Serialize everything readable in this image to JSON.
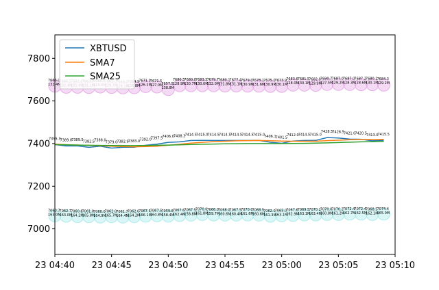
{
  "chart_data": {
    "type": "line",
    "x": [
      "04:40",
      "04:41",
      "04:42",
      "04:43",
      "04:44",
      "04:45",
      "04:46",
      "04:47",
      "04:48",
      "04:49",
      "04:50",
      "04:51",
      "04:52",
      "04:53",
      "04:54",
      "04:55",
      "04:56",
      "04:57",
      "04:58",
      "04:59",
      "05:00",
      "05:01",
      "05:02",
      "05:03",
      "05:04",
      "05:05",
      "05:06",
      "05:07",
      "05:08",
      "05:09"
    ],
    "x_ticks": [
      "23 04:40",
      "23 04:45",
      "23 04:50",
      "23 04:55",
      "23 05:00",
      "23 05:05",
      "23 05:10"
    ],
    "x_tick_values": [
      "04:40",
      "04:45",
      "04:50",
      "04:55",
      "05:00",
      "05:05",
      "05:10"
    ],
    "ylim": [
      6880,
      7910
    ],
    "y_ticks": [
      7000,
      7200,
      7400,
      7600,
      7800
    ],
    "legend_position": "upper-left",
    "series": [
      {
        "name": "XBTUSD",
        "color": "#1f77b4",
        "values": [
          7395.3,
          7389.0,
          7389.5,
          7382.5,
          7388.0,
          7379.0,
          7382.9,
          7383.0,
          7392.0,
          7397.5,
          7406.0,
          7408.3,
          7414.5,
          7415.0,
          7414.5,
          7414.5,
          7414.5,
          7414.5,
          7415.0,
          7406.1,
          7401.5,
          7412.0,
          7414.5,
          7415.0,
          7428.5,
          7426.5,
          7421.0,
          7420.5,
          7413.0,
          7415.5
        ]
      },
      {
        "name": "SMA7",
        "color": "#ff7f0e",
        "values": [
          7397.5,
          7395.0,
          7393.0,
          7391.5,
          7390.0,
          7388.0,
          7386.0,
          7385.0,
          7386.0,
          7388.0,
          7392.0,
          7397.0,
          7402.0,
          7406.0,
          7409.0,
          7411.0,
          7413.0,
          7414.0,
          7414.5,
          7413.5,
          7412.0,
          7411.0,
          7411.0,
          7411.0,
          7414.0,
          7416.0,
          7418.0,
          7419.0,
          7419.0,
          7419.5
        ]
      },
      {
        "name": "SMA25",
        "color": "#2ca02c",
        "values": [
          7395.0,
          7394.0,
          7393.0,
          7392.0,
          7391.5,
          7391.0,
          7390.5,
          7390.5,
          7391.0,
          7392.0,
          7393.0,
          7394.5,
          7396.0,
          7397.0,
          7398.0,
          7399.0,
          7399.5,
          7400.0,
          7400.0,
          7400.0,
          7400.0,
          7400.5,
          7401.0,
          7402.0,
          7403.5,
          7405.0,
          7406.5,
          7408.0,
          7409.0,
          7410.5
        ]
      }
    ],
    "high_markers": {
      "color": "#e6aee6",
      "values": [
        7670.0,
        7665.0,
        7665.0,
        7664.0,
        7666.0,
        7664.0,
        7662.0,
        7663.0,
        7668.0,
        7666.0,
        7654.0,
        7672.0,
        7672.0,
        7672.0,
        7672.0,
        7671.0,
        7671.0,
        7670.0,
        7670.0,
        7669.0,
        7669.0,
        7675.0,
        7675.0,
        7674.0,
        7678.0,
        7678.0,
        7678.0,
        7677.0,
        7677.0,
        7675.0
      ],
      "labels": [
        [
          "7666.0",
          "132.4M"
        ],
        [
          "7666.5",
          "132.4M"
        ],
        [
          "7662.0",
          "131.8M"
        ],
        [
          "7663.0",
          "131.1M"
        ],
        [
          "7660.0",
          "129.6M"
        ],
        [
          "7661.0",
          "129.7M"
        ],
        [
          "7663.0",
          "128.1M"
        ],
        [
          "7664.9",
          "126.8M"
        ],
        [
          "7671.0",
          "126.2M"
        ],
        [
          "7671.5",
          "127.0M"
        ],
        [
          "7657.5",
          "138.8M"
        ],
        [
          "7680.5",
          "128.9M"
        ],
        [
          "7680.0",
          "130.7M"
        ],
        [
          "7683.5",
          "130.0M"
        ],
        [
          "7679.7",
          "132.0M"
        ],
        [
          "7680.1",
          "131.8M"
        ],
        [
          "7677.4",
          "131.1M"
        ],
        [
          "7679.0",
          "130.9M"
        ],
        [
          "7678.1",
          "131.6M"
        ],
        [
          "7675.0",
          "130.9M"
        ],
        [
          "7673.9",
          "130.1M"
        ],
        [
          "7683.6",
          "128.0M"
        ],
        [
          "7681.5",
          "130.1M"
        ],
        [
          "7682.0",
          "129.9M"
        ],
        [
          "7690.7",
          "127.5M"
        ],
        [
          "7687.0",
          "129.2M"
        ],
        [
          "7687.0",
          "128.3M"
        ],
        [
          "7687.2",
          "128.6M"
        ],
        [
          "7680.1",
          "130.1M"
        ],
        [
          "7684.3",
          "129.2M"
        ]
      ]
    },
    "low_markers": {
      "color": "#aeeaea",
      "values": [
        7062.0,
        7060.0,
        7058.0,
        7058.0,
        7056.0,
        7058.0,
        7056.0,
        7058.0,
        7060.0,
        7062.0,
        7060.0,
        7063.0,
        7065.0,
        7068.0,
        7066.0,
        7065.0,
        7065.0,
        7066.0,
        7065.0,
        7060.0,
        7062.0,
        7064.0,
        7066.0,
        7066.0,
        7068.0,
        7068.0,
        7070.0,
        7070.0,
        7068.0,
        7070.0
      ],
      "labels": [
        [
          "7060.7",
          "163.0M"
        ],
        [
          "7062.7",
          "163.0M"
        ],
        [
          "7060.8",
          "164.2M"
        ],
        [
          "7061.0",
          "165.8M"
        ],
        [
          "7060.0",
          "164.9M"
        ],
        [
          "7062.0",
          "165.7M"
        ],
        [
          "7061.7",
          "164.4M"
        ],
        [
          "7062.0",
          "164.2M"
        ],
        [
          "7067.5",
          "166.1M"
        ],
        [
          "7067.5",
          "164.8M"
        ],
        [
          "7059.8",
          "158.4M"
        ],
        [
          "7067.6",
          "162.4M"
        ],
        [
          "7067.5",
          "158.8M"
        ],
        [
          "7070.0",
          "161.8M"
        ],
        [
          "7066.0",
          "159.7M"
        ],
        [
          "7068.0",
          "160.6M"
        ],
        [
          "7067.5",
          "160.4M"
        ],
        [
          "7070.0",
          "161.6M"
        ],
        [
          "7068.5",
          "160.6M"
        ],
        [
          "7062.0",
          "161.3M"
        ],
        [
          "7065.0",
          "163.1M"
        ],
        [
          "7067.6",
          "162.9M"
        ],
        [
          "7069.5",
          "163.1M"
        ],
        [
          "7070.2",
          "163.4M"
        ],
        [
          "7070.0",
          "160.8M"
        ],
        [
          "7070.2",
          "161.2M"
        ],
        [
          "7072.4",
          "162.7M"
        ],
        [
          "7072.4",
          "162.5M"
        ],
        [
          "7068.5",
          "162.1M"
        ],
        [
          "7074.4",
          "165.0M"
        ]
      ]
    }
  }
}
